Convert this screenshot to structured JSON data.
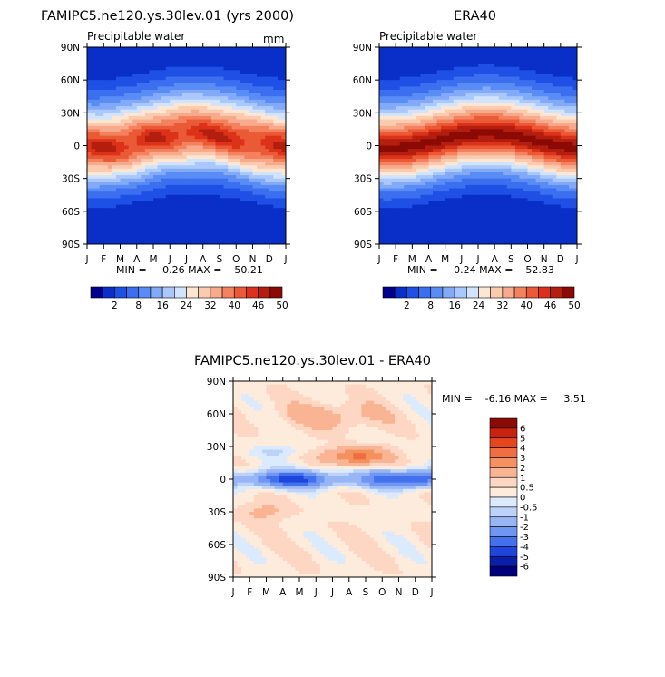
{
  "chart_data": [
    {
      "type": "heatmap",
      "title": "FAMIPC5.ne120.ys.30lev.01 (yrs 2000)",
      "subtitle": "Precipitable water",
      "units": "mm",
      "x_ticks": [
        "J",
        "F",
        "M",
        "A",
        "M",
        "J",
        "J",
        "A",
        "S",
        "O",
        "N",
        "D",
        "J"
      ],
      "y_ticks": [
        "90N",
        "60N",
        "30N",
        "0",
        "30S",
        "60S",
        "90S"
      ],
      "stats_text": "MIN =     0.26 MAX =    50.21",
      "min": 0.26,
      "max": 50.21,
      "colorbar_labels": [
        "2",
        "8",
        "16",
        "24",
        "32",
        "40",
        "46",
        "50"
      ],
      "colorbar_colors": [
        "#00008c",
        "#0a2ec8",
        "#1f50e6",
        "#3c6ef0",
        "#5a8cf5",
        "#82aaf8",
        "#aac8fb",
        "#d2e4fd",
        "#fde6d2",
        "#fbcbb0",
        "#f8aa8c",
        "#f4825f",
        "#eb5a37",
        "#dc3219",
        "#b41e0f",
        "#8c0a05"
      ],
      "grid": false
    },
    {
      "type": "heatmap",
      "title": "ERA40",
      "subtitle": "Precipitable water",
      "x_ticks": [
        "J",
        "F",
        "M",
        "A",
        "M",
        "J",
        "J",
        "A",
        "S",
        "O",
        "N",
        "D",
        "J"
      ],
      "y_ticks": [
        "90N",
        "60N",
        "30N",
        "0",
        "30S",
        "60S",
        "90S"
      ],
      "stats_text": "MIN =     0.24 MAX =    52.83",
      "min": 0.24,
      "max": 52.83,
      "colorbar_labels": [
        "2",
        "8",
        "16",
        "24",
        "32",
        "40",
        "46",
        "50"
      ],
      "colorbar_colors": [
        "#00008c",
        "#0a2ec8",
        "#1f50e6",
        "#3c6ef0",
        "#5a8cf5",
        "#82aaf8",
        "#aac8fb",
        "#d2e4fd",
        "#fde6d2",
        "#fbcbb0",
        "#f8aa8c",
        "#f4825f",
        "#eb5a37",
        "#dc3219",
        "#b41e0f",
        "#8c0a05"
      ],
      "grid": false
    },
    {
      "type": "heatmap",
      "title": "FAMIPC5.ne120.ys.30lev.01 - ERA40",
      "x_ticks": [
        "J",
        "F",
        "M",
        "A",
        "M",
        "J",
        "J",
        "A",
        "S",
        "O",
        "N",
        "D",
        "J"
      ],
      "y_ticks": [
        "90N",
        "60N",
        "30N",
        "0",
        "30S",
        "60S",
        "90S"
      ],
      "stats_text": "MIN =    -6.16 MAX =     3.51",
      "min": -6.16,
      "max": 3.51,
      "colorbar_labels": [
        "6",
        "5",
        "4",
        "3",
        "2",
        "1",
        "0.5",
        "0",
        "-0.5",
        "-1",
        "-2",
        "-3",
        "-4",
        "-5",
        "-6"
      ],
      "colorbar_colors": [
        "#8c0a05",
        "#c8230f",
        "#e6461e",
        "#f06e41",
        "#f5915f",
        "#f9b494",
        "#fdd7c4",
        "#fdebdc",
        "#dceafd",
        "#bcd2fa",
        "#98b6f6",
        "#6e96f2",
        "#4370ec",
        "#1f46dc",
        "#0a1eaa",
        "#00007d"
      ],
      "legend_position": "right",
      "grid": false
    }
  ]
}
